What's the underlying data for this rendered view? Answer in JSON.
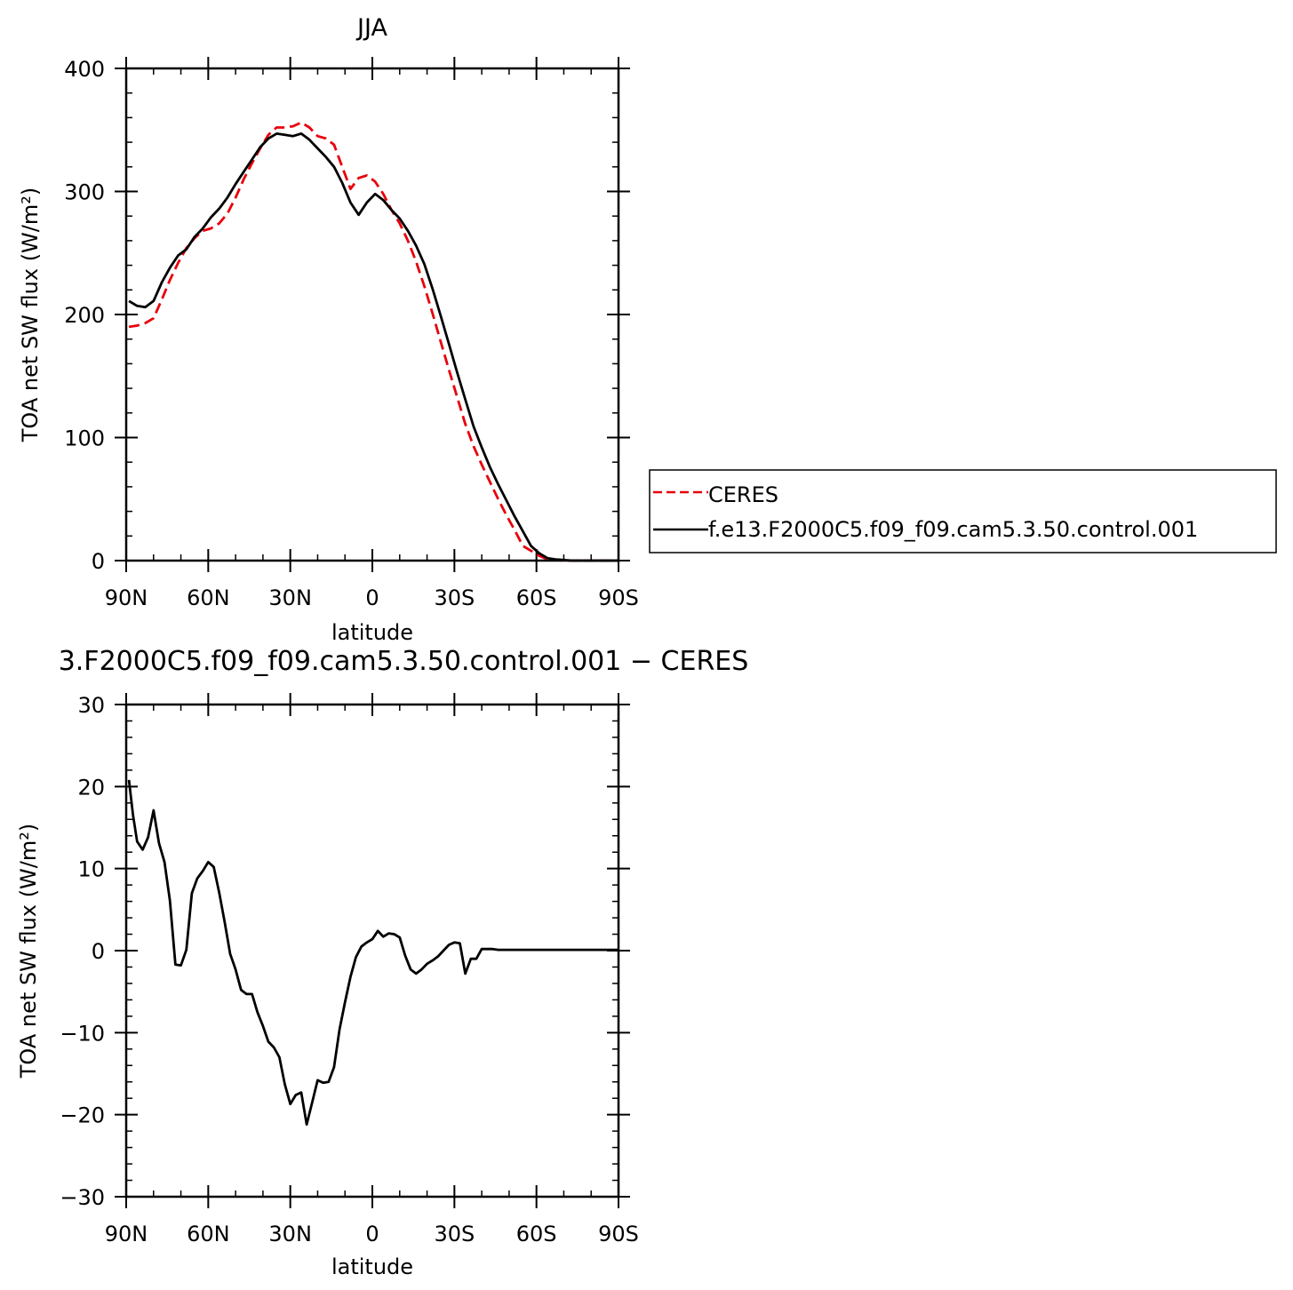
{
  "chart_data": [
    {
      "type": "line",
      "title": "JJA",
      "xlabel": "latitude",
      "ylabel": "TOA net SW flux (W/m²)",
      "xlim": [
        90,
        -90
      ],
      "ylim": [
        0,
        400
      ],
      "x_ticks": [
        {
          "value": 90,
          "label": "90N"
        },
        {
          "value": 60,
          "label": "60N"
        },
        {
          "value": 30,
          "label": "30N"
        },
        {
          "value": 0,
          "label": "0"
        },
        {
          "value": -30,
          "label": "30S"
        },
        {
          "value": -60,
          "label": "60S"
        },
        {
          "value": -90,
          "label": "90S"
        }
      ],
      "y_ticks": [
        0,
        100,
        200,
        300,
        400
      ],
      "legend": {
        "placement": "right",
        "entries": [
          "CERES",
          "f.e13.F2000C5.f09_f09.cam5.3.50.control.001"
        ]
      },
      "series": [
        {
          "name": "CERES",
          "color": "#e8000b",
          "dash": "dashed",
          "x": [
            89,
            86,
            83,
            80,
            77,
            74,
            71,
            68,
            65,
            62,
            59,
            56,
            53,
            50,
            47,
            44,
            41,
            38,
            35,
            32,
            29,
            26,
            23,
            20,
            17,
            14,
            11,
            8,
            5,
            2,
            -1,
            -4,
            -7,
            -10,
            -13,
            -16,
            -19,
            -22,
            -25,
            -28,
            -31,
            -34,
            -37,
            -40,
            -43,
            -46,
            -49,
            -52,
            -55,
            -58,
            -61,
            -64,
            -67,
            -70,
            -73,
            -76,
            -79,
            -82,
            -85,
            -88,
            -90
          ],
          "y": [
            190,
            191,
            193,
            197,
            212,
            228,
            242,
            254,
            262,
            268,
            270,
            274,
            282,
            295,
            310,
            323,
            335,
            346,
            352,
            352,
            353,
            356,
            352,
            345,
            343,
            338,
            320,
            302,
            311,
            313,
            308,
            298,
            285,
            274,
            260,
            243,
            223,
            201,
            178,
            155,
            133,
            111,
            93,
            78,
            64,
            50,
            37,
            25,
            12,
            8,
            4,
            1,
            0.5,
            0,
            0,
            0,
            0,
            0,
            0,
            0,
            0
          ]
        },
        {
          "name": "f.e13.F2000C5.f09_f09.cam5.3.50.control.001",
          "color": "#000000",
          "dash": "solid",
          "x": [
            89,
            86,
            83,
            80,
            77,
            74,
            71,
            68,
            65,
            62,
            59,
            56,
            53,
            50,
            47,
            44,
            41,
            38,
            35,
            32,
            29,
            26,
            23,
            20,
            17,
            14,
            11,
            8,
            5,
            2,
            -1,
            -4,
            -7,
            -10,
            -13,
            -16,
            -19,
            -22,
            -25,
            -28,
            -31,
            -34,
            -37,
            -40,
            -43,
            -46,
            -49,
            -52,
            -55,
            -58,
            -61,
            -64,
            -67,
            -70,
            -73,
            -76,
            -79,
            -82,
            -85,
            -88,
            -90
          ],
          "y": [
            211,
            207,
            206,
            211,
            226,
            238,
            248,
            253,
            263,
            270,
            279,
            286,
            295,
            306,
            316,
            326,
            336,
            343,
            347,
            346,
            345,
            347,
            342,
            335,
            328,
            320,
            307,
            291,
            281,
            291,
            298,
            293,
            285,
            278,
            268,
            256,
            241,
            221,
            199,
            176,
            153,
            131,
            109,
            92,
            76,
            62,
            49,
            36,
            24,
            12,
            6,
            2,
            1,
            0.5,
            0,
            0,
            0,
            0,
            0,
            0,
            0
          ]
        }
      ]
    },
    {
      "type": "line",
      "title": "3.F2000C5.f09_f09.cam5.3.50.control.001 − CERES",
      "xlabel": "latitude",
      "ylabel": "TOA net SW flux (W/m²)",
      "xlim": [
        90,
        -90
      ],
      "ylim": [
        -30,
        30
      ],
      "x_ticks": [
        {
          "value": 90,
          "label": "90N"
        },
        {
          "value": 60,
          "label": "60N"
        },
        {
          "value": 30,
          "label": "30N"
        },
        {
          "value": 0,
          "label": "0"
        },
        {
          "value": -30,
          "label": "30S"
        },
        {
          "value": -60,
          "label": "60S"
        },
        {
          "value": -90,
          "label": "90S"
        }
      ],
      "y_ticks": [
        {
          "value": 30,
          "label": "30"
        },
        {
          "value": 20,
          "label": "20"
        },
        {
          "value": 10,
          "label": "10"
        },
        {
          "value": 0,
          "label": "0"
        },
        {
          "value": -10,
          "label": "−10"
        },
        {
          "value": -20,
          "label": "−20"
        },
        {
          "value": -30,
          "label": "−30"
        }
      ],
      "series": [
        {
          "color": "#000000",
          "dash": "solid",
          "x": [
            89,
            87.5,
            86,
            84,
            82,
            80,
            78,
            76,
            74,
            72,
            70,
            68,
            66,
            64,
            62,
            60,
            58,
            56,
            54,
            52,
            50,
            48,
            46,
            44,
            42,
            40,
            38,
            36,
            34,
            32,
            30,
            28,
            26,
            24,
            22,
            20,
            18,
            16,
            14,
            12,
            10,
            8,
            6,
            4,
            2,
            0,
            -2,
            -4,
            -6,
            -8,
            -10,
            -12,
            -14,
            -16,
            -18,
            -20,
            -22,
            -24,
            -26,
            -28,
            -30,
            -32,
            -34,
            -36,
            -38,
            -40,
            -42,
            -44,
            -46,
            -48,
            -50,
            -52,
            -54,
            -56,
            -58,
            -60,
            -62,
            -64,
            -66,
            -68,
            -70,
            -72,
            -74,
            -76,
            -78,
            -80,
            -82,
            -84,
            -86,
            -88,
            -90
          ],
          "y": [
            20.8,
            16.5,
            13.3,
            12.3,
            13.8,
            17.1,
            13.1,
            10.8,
            6.1,
            -1.7,
            -1.8,
            0.1,
            7,
            8.8,
            9.7,
            10.8,
            10.2,
            7.1,
            3.5,
            -0.4,
            -2.3,
            -4.8,
            -5.3,
            -5.3,
            -7.5,
            -9.2,
            -11.1,
            -11.8,
            -13,
            -16.3,
            -18.7,
            -17.6,
            -17.3,
            -21.2,
            -18.5,
            -15.8,
            -16.1,
            -16,
            -14.2,
            -9.6,
            -6.3,
            -3.2,
            -0.8,
            0.5,
            1,
            1.4,
            2.4,
            1.7,
            2.1,
            2,
            1.6,
            -0.6,
            -2.3,
            -2.8,
            -2.3,
            -1.6,
            -1.2,
            -0.7,
            0,
            0.7,
            1,
            0.9,
            -2.8,
            -1,
            -1,
            0.2,
            0.2,
            0.2,
            0.1,
            0.1,
            0.1,
            0.1,
            0.1,
            0.1,
            0.1,
            0.1,
            0.1,
            0.1,
            0.1,
            0.1,
            0.1,
            0.1,
            0.1,
            0.1,
            0.1,
            0.1,
            0.1,
            0.1,
            0.1,
            0.1,
            0.1
          ]
        }
      ]
    }
  ]
}
